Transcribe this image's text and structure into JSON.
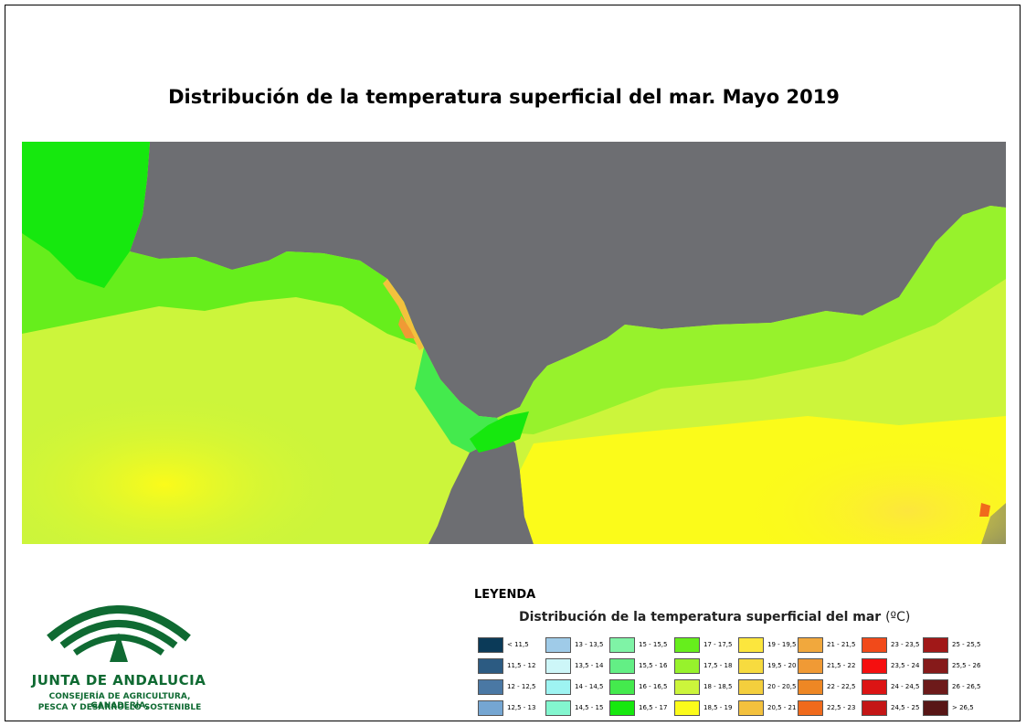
{
  "title": "Distribución de la temperatura superficial del mar. Mayo 2019",
  "colors": {
    "land": "#6d6e72",
    "frame": "#000000",
    "logo_green": "#0f6a32"
  },
  "legend": {
    "heading": "LEYENDA",
    "subtitle": "Distribución de la temperatura superficial del mar",
    "unit": "(ºC)",
    "columns": [
      [
        {
          "label": "< 11,5",
          "color": "#0b3a58"
        },
        {
          "label": "11,5 - 12",
          "color": "#2c5b82"
        },
        {
          "label": "12 - 12,5",
          "color": "#4a78a4"
        },
        {
          "label": "12,5 - 13",
          "color": "#75a6d2"
        }
      ],
      [
        {
          "label": "13 - 13,5",
          "color": "#9fcbe8"
        },
        {
          "label": "13,5 - 14",
          "color": "#cdf6f8"
        },
        {
          "label": "14 - 14,5",
          "color": "#9ef4f2"
        },
        {
          "label": "14,5 - 15",
          "color": "#83f6cf"
        }
      ],
      [
        {
          "label": "15 - 15,5",
          "color": "#7ff3a6"
        },
        {
          "label": "15,5 - 16",
          "color": "#63ef85"
        },
        {
          "label": "16 - 16,5",
          "color": "#44ea4d"
        },
        {
          "label": "16,5 - 17",
          "color": "#16e80e"
        }
      ],
      [
        {
          "label": "17 - 17,5",
          "color": "#66ee1c"
        },
        {
          "label": "17,5 - 18",
          "color": "#97f22c"
        },
        {
          "label": "18 - 18,5",
          "color": "#ccf53b"
        },
        {
          "label": "18,5 - 19",
          "color": "#fbfb1a"
        }
      ],
      [
        {
          "label": "19 - 19,5",
          "color": "#fce63d"
        },
        {
          "label": "19,5 - 20",
          "color": "#f7db3f"
        },
        {
          "label": "20 - 20,5",
          "color": "#f4cf3d"
        },
        {
          "label": "20,5 - 21",
          "color": "#f3c13d"
        }
      ],
      [
        {
          "label": "21 - 21,5",
          "color": "#f1a83d"
        },
        {
          "label": "21,5 - 22",
          "color": "#f09a35"
        },
        {
          "label": "22 - 22,5",
          "color": "#ee8724"
        },
        {
          "label": "22,5 - 23",
          "color": "#f06a1c"
        }
      ],
      [
        {
          "label": "23 - 23,5",
          "color": "#f14a1a"
        },
        {
          "label": "23,5 - 24",
          "color": "#f50f0f"
        },
        {
          "label": "24 - 24,5",
          "color": "#dc1414"
        },
        {
          "label": "24,5 - 25",
          "color": "#c41616"
        }
      ],
      [
        {
          "label": "25 - 25,5",
          "color": "#a11818"
        },
        {
          "label": "25,5 - 26",
          "color": "#861a1a"
        },
        {
          "label": "26 - 26,5",
          "color": "#6d1a1a"
        },
        {
          "label": "> 26,5",
          "color": "#581616"
        }
      ]
    ]
  },
  "logo": {
    "name": "JUNTA DE ANDALUCIA",
    "line1": "CONSEJERÍA DE AGRICULTURA, GANADERÍA,",
    "line2": "PESCA Y DESARROLLO SOSTENIBLE"
  }
}
